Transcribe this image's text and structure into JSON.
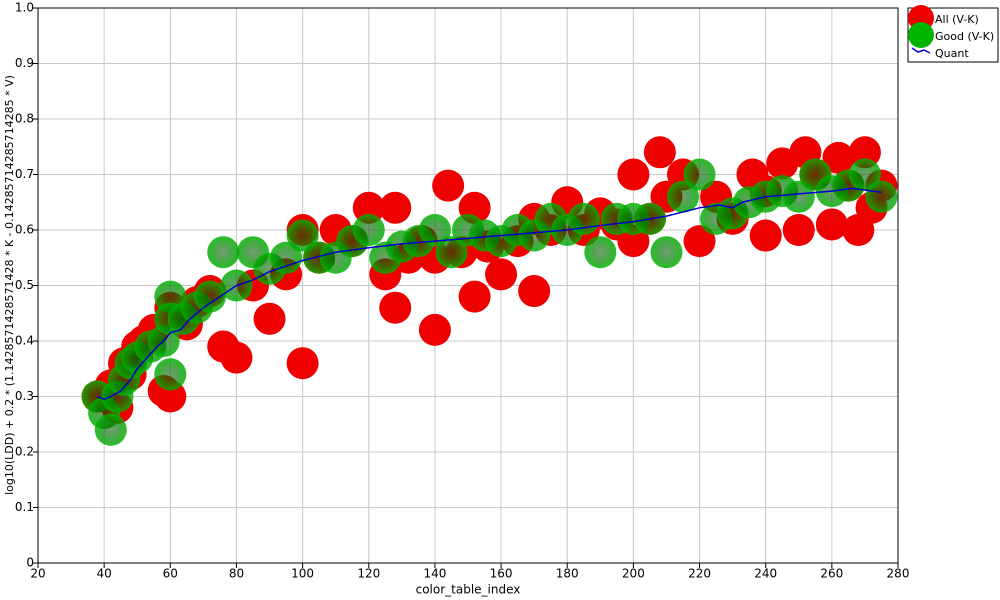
{
  "chart_data": {
    "type": "scatter",
    "x_label": "color_table_index",
    "y_label": "log10(LDD) + 0.2 * (1.1428571428571428 * K - 0.14285714285714285 * V)",
    "xlim": [
      20,
      280
    ],
    "xticks": [
      20,
      40,
      60,
      80,
      100,
      120,
      140,
      160,
      180,
      200,
      220,
      240,
      260,
      280
    ],
    "ylim": [
      0,
      1
    ],
    "yticks": [
      0,
      0.1,
      0.2,
      0.3,
      0.4,
      0.5,
      0.6,
      0.7,
      0.8,
      0.9,
      {
        "value": 1,
        "label": "1.0"
      }
    ],
    "grid": true,
    "legend": "outside-top-right",
    "series": [
      {
        "name": "All (V-K)",
        "color": "#ee0000",
        "marker": "circle",
        "x": [
          38,
          42,
          44,
          46,
          48,
          50,
          52,
          55,
          58,
          60,
          60,
          62,
          65,
          68,
          72,
          76,
          80,
          85,
          90,
          95,
          100,
          100,
          105,
          110,
          115,
          120,
          125,
          128,
          128,
          132,
          136,
          140,
          140,
          144,
          148,
          152,
          152,
          156,
          160,
          165,
          170,
          170,
          175,
          180,
          185,
          190,
          195,
          200,
          200,
          205,
          208,
          210,
          215,
          220,
          225,
          230,
          236,
          240,
          240,
          245,
          250,
          252,
          255,
          260,
          262,
          265,
          268,
          270,
          272,
          275
        ],
        "values": [
          0.3,
          0.32,
          0.28,
          0.36,
          0.34,
          0.39,
          0.4,
          0.42,
          0.31,
          0.3,
          0.46,
          0.45,
          0.43,
          0.47,
          0.49,
          0.39,
          0.37,
          0.5,
          0.44,
          0.52,
          0.36,
          0.6,
          0.55,
          0.6,
          0.58,
          0.64,
          0.52,
          0.46,
          0.64,
          0.55,
          0.58,
          0.42,
          0.55,
          0.68,
          0.56,
          0.48,
          0.64,
          0.57,
          0.52,
          0.58,
          0.49,
          0.62,
          0.6,
          0.65,
          0.6,
          0.63,
          0.61,
          0.7,
          0.58,
          0.62,
          0.74,
          0.66,
          0.7,
          0.58,
          0.66,
          0.62,
          0.7,
          0.59,
          0.67,
          0.72,
          0.6,
          0.74,
          0.7,
          0.61,
          0.73,
          0.68,
          0.6,
          0.74,
          0.64,
          0.68
        ]
      },
      {
        "name": "Good (V-K)",
        "color": "#00b400",
        "marker": "circle",
        "x": [
          38,
          40,
          42,
          44,
          46,
          48,
          50,
          54,
          58,
          60,
          60,
          60,
          64,
          68,
          72,
          76,
          80,
          85,
          90,
          95,
          100,
          105,
          110,
          115,
          120,
          125,
          130,
          135,
          140,
          145,
          150,
          155,
          160,
          165,
          170,
          175,
          180,
          185,
          190,
          195,
          200,
          205,
          210,
          215,
          220,
          225,
          230,
          235,
          240,
          245,
          250,
          255,
          260,
          265,
          270,
          275
        ],
        "values": [
          0.3,
          0.27,
          0.24,
          0.3,
          0.33,
          0.36,
          0.37,
          0.39,
          0.4,
          0.48,
          0.44,
          0.34,
          0.44,
          0.46,
          0.48,
          0.56,
          0.5,
          0.56,
          0.53,
          0.55,
          0.59,
          0.55,
          0.55,
          0.58,
          0.6,
          0.55,
          0.57,
          0.58,
          0.6,
          0.56,
          0.6,
          0.59,
          0.58,
          0.6,
          0.59,
          0.62,
          0.6,
          0.62,
          0.56,
          0.62,
          0.62,
          0.62,
          0.56,
          0.66,
          0.7,
          0.62,
          0.63,
          0.65,
          0.66,
          0.67,
          0.66,
          0.7,
          0.67,
          0.68,
          0.7,
          0.66
        ]
      },
      {
        "name": "Quant",
        "color": "#0000cc",
        "marker": "line",
        "x": [
          38,
          40,
          42,
          45,
          48,
          50,
          53,
          56,
          58,
          60,
          63,
          66,
          70,
          75,
          80,
          85,
          90,
          95,
          100,
          110,
          120,
          130,
          140,
          150,
          160,
          170,
          180,
          190,
          200,
          210,
          220,
          226,
          230,
          233,
          240,
          250,
          260,
          266,
          270,
          275
        ],
        "values": [
          0.3,
          0.295,
          0.3,
          0.31,
          0.33,
          0.35,
          0.37,
          0.39,
          0.4,
          0.415,
          0.42,
          0.44,
          0.46,
          0.48,
          0.5,
          0.51,
          0.525,
          0.535,
          0.545,
          0.56,
          0.568,
          0.575,
          0.58,
          0.585,
          0.59,
          0.595,
          0.6,
          0.608,
          0.615,
          0.625,
          0.64,
          0.645,
          0.64,
          0.65,
          0.66,
          0.665,
          0.67,
          0.675,
          0.672,
          0.668
        ]
      }
    ]
  }
}
